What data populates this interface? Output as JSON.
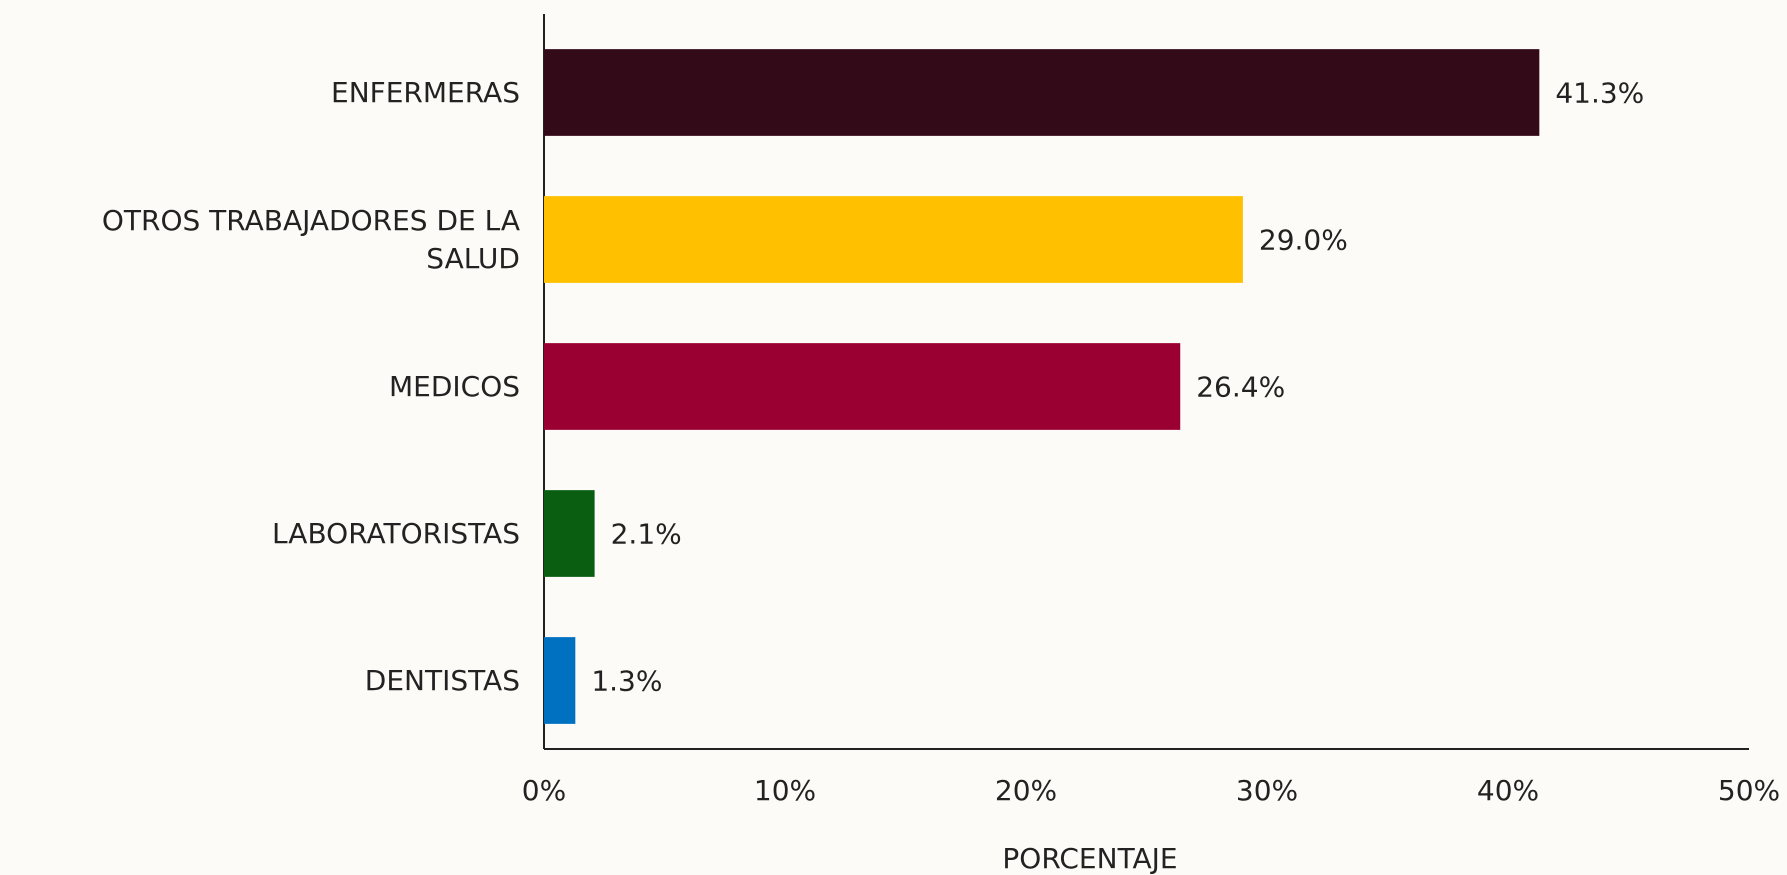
{
  "chart_data": {
    "type": "bar",
    "orientation": "horizontal",
    "categories": [
      "ENFERMERAS",
      "OTROS TRABAJADORES DE LA SALUD",
      "MEDICOS",
      "LABORATORISTAS",
      "DENTISTAS"
    ],
    "values": [
      41.3,
      29.0,
      26.4,
      2.1,
      1.3
    ],
    "value_labels": [
      "41.3%",
      "29.0%",
      "26.4%",
      "2.1%",
      "1.3%"
    ],
    "colors": [
      "#330a18",
      "#ffc000",
      "#9b0033",
      "#0a5e12",
      "#0070c0"
    ],
    "xlim": [
      0,
      50
    ],
    "xticks": [
      {
        "value": 0,
        "label": "0%"
      },
      {
        "value": 10,
        "label": "10%"
      },
      {
        "value": 20,
        "label": "20%"
      },
      {
        "value": 30,
        "label": "30%"
      },
      {
        "value": 40,
        "label": "40%"
      },
      {
        "value": 50,
        "label": "50%"
      }
    ],
    "x_label": "PORCENTAJE",
    "grid": false
  }
}
